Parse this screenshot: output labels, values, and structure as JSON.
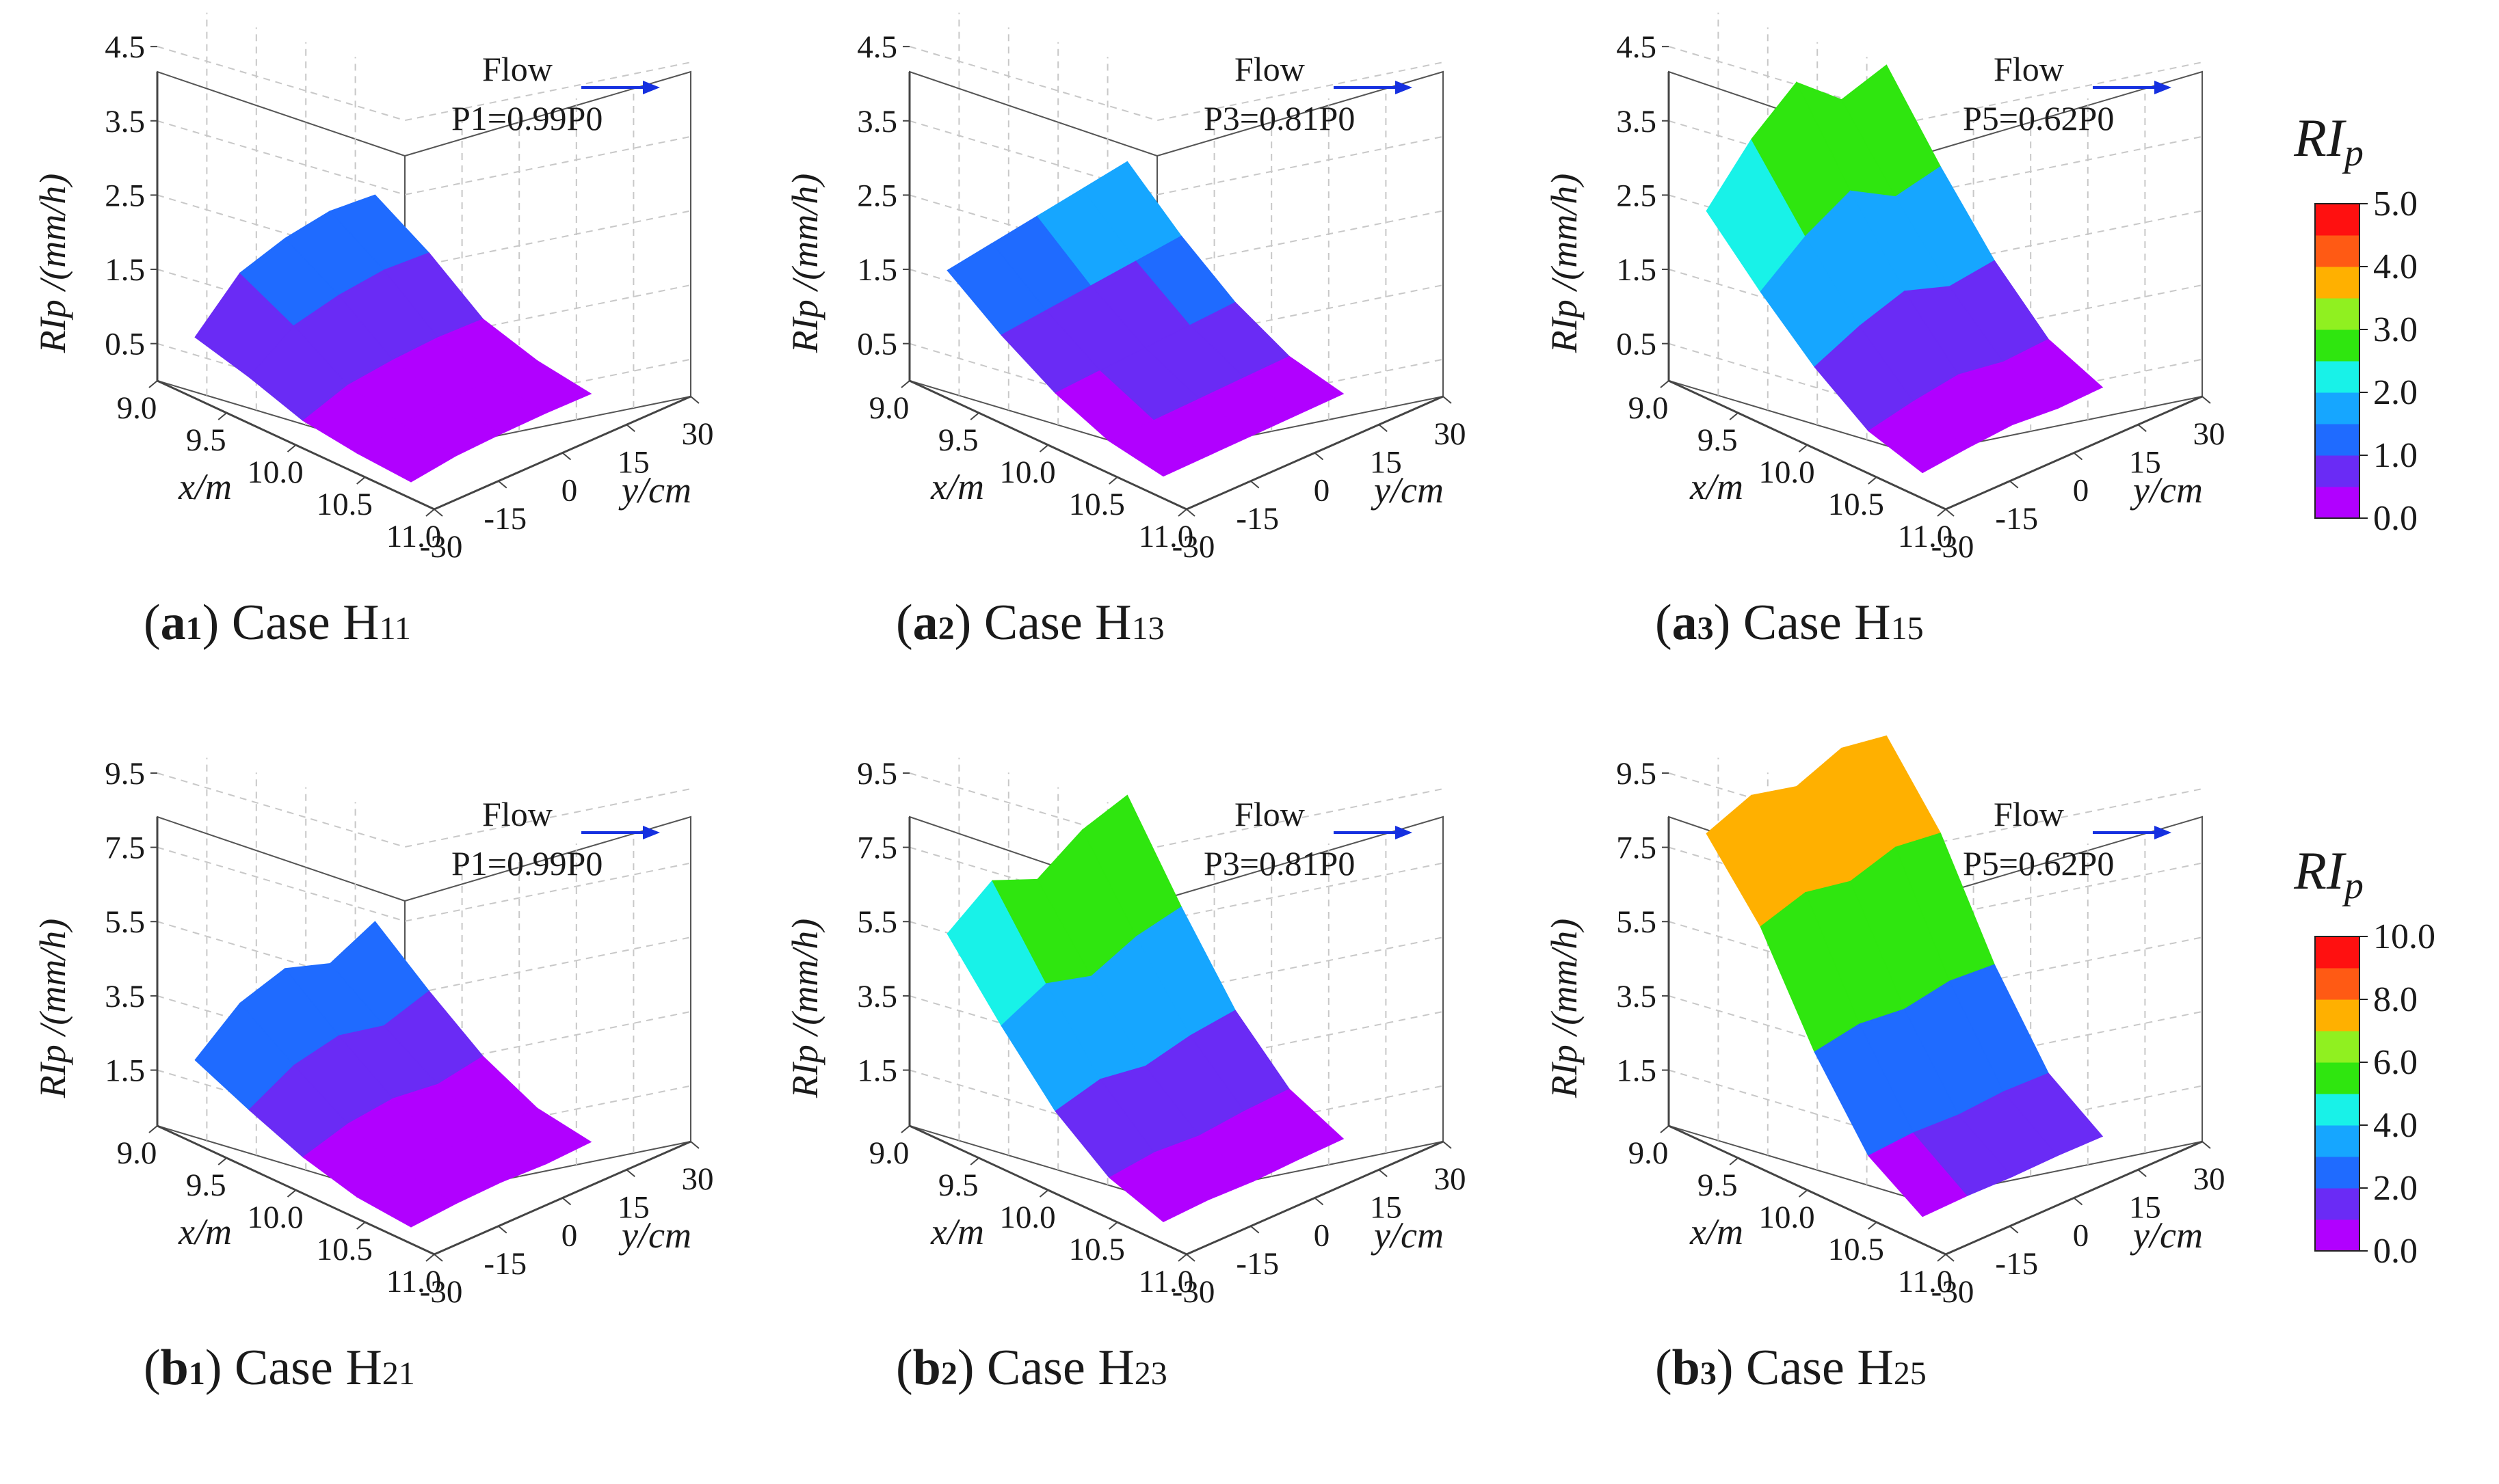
{
  "colors": {
    "flow_arrow": "#1530e0",
    "axis": "#444444",
    "grid": "#c8c8c8",
    "text": "#1a1a1a"
  },
  "colorbars": [
    {
      "title": "RI",
      "subscript": "p",
      "labels": [
        "0.0",
        "1.0",
        "2.0",
        "3.0",
        "4.0",
        "5.0"
      ],
      "colors": [
        "#b100ff",
        "#6a2bf5",
        "#1f6bff",
        "#16a6ff",
        "#18f2e8",
        "#2fe60f",
        "#90f020",
        "#ffb000",
        "#ff5a14",
        "#ff1010"
      ]
    },
    {
      "title": "RI",
      "subscript": "p",
      "labels": [
        "0.0",
        "2.0",
        "4.0",
        "6.0",
        "8.0",
        "10.0"
      ],
      "colors": [
        "#b100ff",
        "#6a2bf5",
        "#1f6bff",
        "#16a6ff",
        "#18f2e8",
        "#2fe60f",
        "#90f020",
        "#ffb000",
        "#ff5a14",
        "#ff1010"
      ]
    }
  ],
  "chart_data": [
    {
      "type": "surface3d",
      "panel": "a1",
      "case_label": "Case H11",
      "caption_letter": "a",
      "caption_digit": "1",
      "case_main": "Case H",
      "case_sub": "11",
      "flow_label": "Flow",
      "pressure_label": "P1=0.99P0",
      "p_sub": "1",
      "p_val": "=0.99P",
      "p0_sub": "0",
      "zlabel": "RIp /(mm/h)",
      "xlabel": "x/m",
      "ylabel": "y/cm",
      "x_ticks": [
        "9.0",
        "9.5",
        "10.0",
        "10.5",
        "11.0"
      ],
      "y_ticks": [
        "-30",
        "-15",
        "0",
        "15",
        "30"
      ],
      "z_ticks": [
        "0.5",
        "1.5",
        "2.5",
        "3.5",
        "4.5"
      ],
      "z_range": [
        0,
        5
      ],
      "x_range": [
        9,
        11
      ],
      "y_range": [
        -30,
        30
      ],
      "colorbar_max": 5,
      "x": [
        9.0,
        9.5,
        10.0,
        10.5,
        11.0
      ],
      "upstream_edge_y": [
        -30,
        -15,
        0,
        15,
        30
      ],
      "upstream_edge_values": [
        0.7,
        1.3,
        1.5,
        1.6,
        1.55
      ],
      "values": [
        1.4,
        1.0,
        0.5,
        0.3,
        0.2
      ]
    },
    {
      "type": "surface3d",
      "panel": "a2",
      "case_label": "Case H13",
      "caption_letter": "a",
      "caption_digit": "2",
      "case_main": "Case H",
      "case_sub": "13",
      "flow_label": "Flow",
      "pressure_label": "P3=0.81P0",
      "p_sub": "3",
      "p_val": "=0.81P",
      "p0_sub": "0",
      "zlabel": "RIp /(mm/h)",
      "xlabel": "x/m",
      "ylabel": "y/cm",
      "x_ticks": [
        "9.0",
        "9.5",
        "10.0",
        "10.5",
        "11.0"
      ],
      "y_ticks": [
        "-30",
        "-15",
        "0",
        "15",
        "30"
      ],
      "z_ticks": [
        "0.5",
        "1.5",
        "2.5",
        "3.5",
        "4.5"
      ],
      "z_range": [
        0,
        5
      ],
      "x_range": [
        9,
        11
      ],
      "y_range": [
        -30,
        30
      ],
      "colorbar_max": 5,
      "x": [
        9.0,
        9.5,
        10.0,
        10.5,
        11.0
      ],
      "upstream_edge_y": [
        -30,
        -15,
        0,
        15,
        30
      ],
      "upstream_edge_values": [
        1.6,
        1.7,
        1.8,
        1.9,
        2.0
      ],
      "values": [
        1.8,
        1.2,
        0.7,
        0.35,
        0.2
      ]
    },
    {
      "type": "surface3d",
      "panel": "a3",
      "case_label": "Case H15",
      "caption_letter": "a",
      "caption_digit": "3",
      "case_main": "Case H",
      "case_sub": "15",
      "flow_label": "Flow",
      "pressure_label": "P5=0.62P0",
      "p_sub": "5",
      "p_val": "=0.62P",
      "p0_sub": "0",
      "zlabel": "RIp /(mm/h)",
      "xlabel": "x/m",
      "ylabel": "y/cm",
      "x_ticks": [
        "9.0",
        "9.5",
        "10.0",
        "10.5",
        "11.0"
      ],
      "y_ticks": [
        "-30",
        "-15",
        "0",
        "15",
        "30"
      ],
      "z_ticks": [
        "0.5",
        "1.5",
        "2.5",
        "3.5",
        "4.5"
      ],
      "z_range": [
        0,
        5
      ],
      "x_range": [
        9,
        11
      ],
      "y_range": [
        -30,
        30
      ],
      "colorbar_max": 5,
      "x": [
        9.0,
        9.5,
        10.0,
        10.5,
        11.0
      ],
      "upstream_edge_y": [
        -30,
        -15,
        0,
        15,
        30
      ],
      "upstream_edge_values": [
        2.4,
        3.1,
        3.6,
        3.1,
        3.3
      ],
      "values": [
        3.2,
        2.2,
        1.3,
        0.6,
        0.3
      ]
    },
    {
      "type": "surface3d",
      "panel": "b1",
      "case_label": "Case H21",
      "caption_letter": "b",
      "caption_digit": "1",
      "case_main": "Case H",
      "case_sub": "21",
      "flow_label": "Flow",
      "pressure_label": "P1=0.99P0",
      "p_sub": "1",
      "p_val": "=0.99P",
      "p0_sub": "0",
      "zlabel": "RIp /(mm/h)",
      "xlabel": "x/m",
      "ylabel": "y/cm",
      "x_ticks": [
        "9.0",
        "9.5",
        "10.0",
        "10.5",
        "11.0"
      ],
      "y_ticks": [
        "-30",
        "-15",
        "0",
        "15",
        "30"
      ],
      "z_ticks": [
        "1.5",
        "3.5",
        "5.5",
        "7.5",
        "9.5"
      ],
      "z_range": [
        0,
        10
      ],
      "x_range": [
        9,
        11
      ],
      "y_range": [
        -30,
        30
      ],
      "colorbar_max": 10,
      "x": [
        9.0,
        9.5,
        10.0,
        10.5,
        11.0
      ],
      "upstream_edge_y": [
        -30,
        -15,
        0,
        15,
        30
      ],
      "upstream_edge_values": [
        2.0,
        3.0,
        3.4,
        3.0,
        3.6
      ],
      "values": [
        3.0,
        2.0,
        1.1,
        0.5,
        0.3
      ]
    },
    {
      "type": "surface3d",
      "panel": "b2",
      "case_label": "Case H23",
      "caption_letter": "b",
      "caption_digit": "2",
      "case_main": "Case H",
      "case_sub": "23",
      "flow_label": "Flow",
      "pressure_label": "P3=0.81P0",
      "p_sub": "3",
      "p_val": "=0.81P",
      "p0_sub": "0",
      "zlabel": "RIp /(mm/h)",
      "xlabel": "x/m",
      "ylabel": "y/cm",
      "x_ticks": [
        "9.0",
        "9.5",
        "10.0",
        "10.5",
        "11.0"
      ],
      "y_ticks": [
        "-30",
        "-15",
        "0",
        "15",
        "30"
      ],
      "z_ticks": [
        "1.5",
        "3.5",
        "5.5",
        "7.5",
        "9.5"
      ],
      "z_range": [
        0,
        10
      ],
      "x_range": [
        9,
        11
      ],
      "y_range": [
        -30,
        30
      ],
      "colorbar_max": 10,
      "x": [
        9.0,
        9.5,
        10.0,
        10.5,
        11.0
      ],
      "upstream_edge_y": [
        -30,
        -15,
        0,
        15,
        30
      ],
      "upstream_edge_values": [
        5.4,
        6.3,
        5.8,
        6.6,
        7.0
      ],
      "values": [
        6.3,
        4.2,
        2.3,
        1.0,
        0.4
      ]
    },
    {
      "type": "surface3d",
      "panel": "b3",
      "case_label": "Case H25",
      "caption_letter": "b",
      "caption_digit": "3",
      "case_main": "Case H",
      "case_sub": "25",
      "flow_label": "Flow",
      "pressure_label": "P5=0.62P0",
      "p_sub": "5",
      "p_val": "=0.62P",
      "p0_sub": "0",
      "zlabel": "RIp /(mm/h)",
      "xlabel": "x/m",
      "ylabel": "y/cm",
      "x_ticks": [
        "9.0",
        "9.5",
        "10.0",
        "10.5",
        "11.0"
      ],
      "y_ticks": [
        "-30",
        "-15",
        "0",
        "15",
        "30"
      ],
      "z_ticks": [
        "1.5",
        "3.5",
        "5.5",
        "7.5",
        "9.5"
      ],
      "z_range": [
        0,
        10
      ],
      "x_range": [
        9,
        11
      ],
      "y_range": [
        -30,
        30
      ],
      "colorbar_max": 10,
      "x": [
        9.0,
        9.5,
        10.0,
        10.5,
        11.0
      ],
      "upstream_edge_y": [
        -30,
        -15,
        0,
        15,
        30
      ],
      "upstream_edge_values": [
        8.1,
        8.6,
        8.3,
        8.8,
        8.6
      ],
      "values": [
        8.4,
        6.5,
        3.7,
        1.5,
        0.5
      ]
    }
  ]
}
